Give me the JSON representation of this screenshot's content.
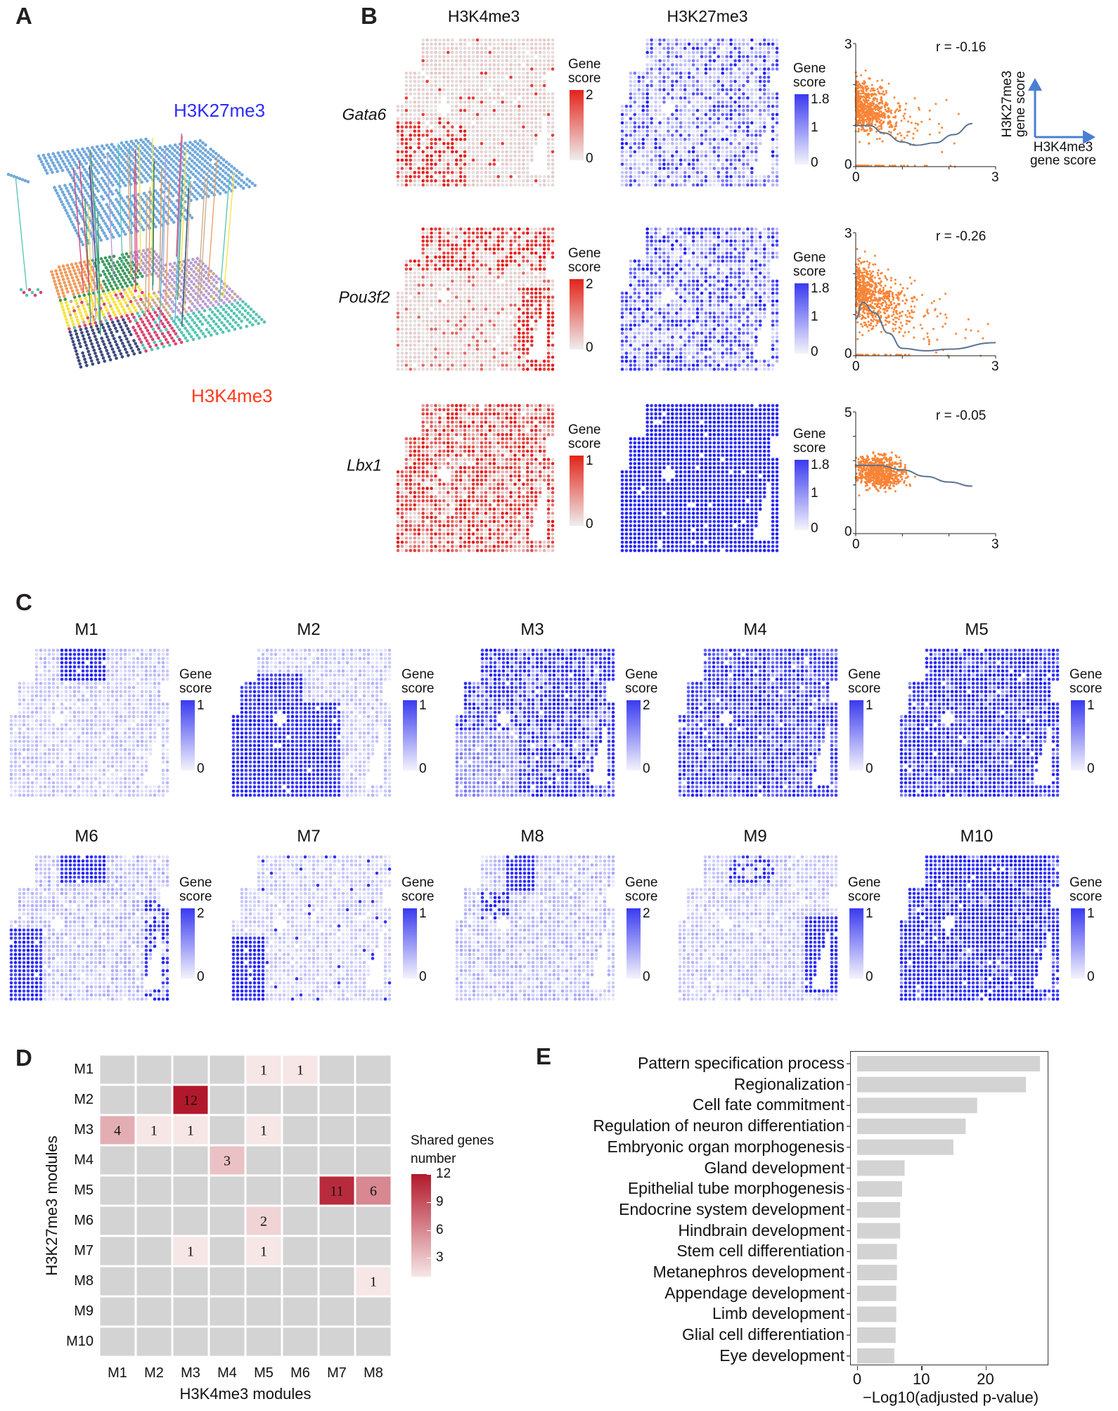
{
  "panels": {
    "a": "A",
    "b": "B",
    "c": "C",
    "d": "D",
    "e": "E"
  },
  "panel_a": {
    "top_layer_label": "H3K27me3",
    "bottom_layer_label": "H3K4me3",
    "colors": {
      "top": "#6fa8dc",
      "top_label": "#2b2bff",
      "bottom_label": "#ff3a1a"
    }
  },
  "panel_b": {
    "col_titles": [
      "H3K4me3",
      "H3K27me3"
    ],
    "legend_title_1": "Gene",
    "legend_title_2": "score",
    "rows": [
      {
        "gene": "Gata6",
        "k4_ticks": [
          "2",
          "0"
        ],
        "k27_ticks": [
          "1.8",
          "1",
          "0"
        ]
      },
      {
        "gene": "Pou3f2",
        "k4_ticks": [
          "2",
          "0"
        ],
        "k27_ticks": [
          "1.8",
          "1",
          "0"
        ]
      },
      {
        "gene": "Lbx1",
        "k4_ticks": [
          "1",
          "0"
        ],
        "k27_ticks": [
          "1.8",
          "1",
          "0"
        ]
      }
    ],
    "axis_key": {
      "y_line1": "H3K27me3",
      "y_line2": "gene score",
      "x_line1": "H3K4me3",
      "x_line2": "gene score",
      "color": "#4a7fd4"
    }
  },
  "panel_c": {
    "legend_title_1": "Gene",
    "legend_title_2": "score",
    "modules": [
      {
        "title": "M1",
        "ticks": [
          "1",
          "0"
        ]
      },
      {
        "title": "M2",
        "ticks": [
          "1",
          "0"
        ]
      },
      {
        "title": "M3",
        "ticks": [
          "2",
          "0"
        ]
      },
      {
        "title": "M4",
        "ticks": [
          "1",
          "0"
        ]
      },
      {
        "title": "M5",
        "ticks": [
          "1",
          "0"
        ]
      },
      {
        "title": "M6",
        "ticks": [
          "2",
          "0"
        ]
      },
      {
        "title": "M7",
        "ticks": [
          "1",
          "0"
        ]
      },
      {
        "title": "M8",
        "ticks": [
          "2",
          "0"
        ]
      },
      {
        "title": "M9",
        "ticks": [
          "1",
          "0"
        ]
      },
      {
        "title": "M10",
        "ticks": [
          "1",
          "0"
        ]
      }
    ]
  },
  "chart_data": [
    {
      "type": "scatter",
      "id": "gata6",
      "annotation": "r = -0.16",
      "xlim": [
        0,
        3
      ],
      "ylim": [
        0,
        3
      ],
      "xticks": [
        "0",
        "3"
      ],
      "yticks": [
        "0",
        "3"
      ],
      "point_color": "#f98436",
      "curve_color": "#5b7490",
      "smooth_curve": [
        [
          0,
          1.0
        ],
        [
          0.3,
          1.0
        ],
        [
          0.6,
          0.82
        ],
        [
          1.0,
          0.6
        ],
        [
          1.3,
          0.52
        ],
        [
          1.7,
          0.58
        ],
        [
          2.1,
          0.78
        ],
        [
          2.5,
          1.05
        ]
      ]
    },
    {
      "type": "scatter",
      "id": "pou3f2",
      "annotation": "r = -0.26",
      "xlim": [
        0,
        3
      ],
      "ylim": [
        0,
        3
      ],
      "xticks": [
        "0",
        "3"
      ],
      "yticks": [
        "0",
        "3"
      ],
      "point_color": "#f98436",
      "curve_color": "#5b7490",
      "smooth_curve": [
        [
          0,
          0.9
        ],
        [
          0.15,
          1.3
        ],
        [
          0.4,
          1.05
        ],
        [
          0.7,
          0.55
        ],
        [
          1.0,
          0.18
        ],
        [
          1.5,
          0.12
        ],
        [
          2.0,
          0.16
        ],
        [
          3.0,
          0.32
        ]
      ]
    },
    {
      "type": "scatter",
      "id": "lbx1",
      "annotation": "r = -0.05",
      "xlim": [
        0,
        3
      ],
      "ylim": [
        0,
        5
      ],
      "xticks": [
        "0",
        "3"
      ],
      "yticks": [
        "0",
        "5"
      ],
      "point_color": "#f98436",
      "curve_color": "#5b7490",
      "smooth_curve": [
        [
          0,
          2.8
        ],
        [
          0.5,
          2.8
        ],
        [
          1.0,
          2.62
        ],
        [
          1.5,
          2.35
        ],
        [
          2.0,
          2.12
        ],
        [
          2.5,
          1.95
        ]
      ]
    },
    {
      "type": "heatmap",
      "id": "shared-genes",
      "xlabel": "H3K4me3 modules",
      "ylabel": "H3K27me3 modules",
      "x_categories": [
        "M1",
        "M2",
        "M3",
        "M4",
        "M5",
        "M6",
        "M7",
        "M8"
      ],
      "y_categories": [
        "M1",
        "M2",
        "M3",
        "M4",
        "M5",
        "M6",
        "M7",
        "M8",
        "M9",
        "M10"
      ],
      "values": [
        [
          0,
          0,
          0,
          0,
          1,
          1,
          0,
          0
        ],
        [
          0,
          0,
          12,
          0,
          0,
          0,
          0,
          0
        ],
        [
          4,
          1,
          1,
          0,
          1,
          0,
          0,
          0
        ],
        [
          0,
          0,
          0,
          3,
          0,
          0,
          0,
          0
        ],
        [
          0,
          0,
          0,
          0,
          0,
          0,
          11,
          6
        ],
        [
          0,
          0,
          0,
          0,
          2,
          0,
          0,
          0
        ],
        [
          0,
          0,
          1,
          0,
          1,
          0,
          0,
          0
        ],
        [
          0,
          0,
          0,
          0,
          0,
          0,
          0,
          1
        ],
        [
          0,
          0,
          0,
          0,
          0,
          0,
          0,
          0
        ],
        [
          0,
          0,
          0,
          0,
          0,
          0,
          0,
          0
        ]
      ],
      "legend_title_1": "Shared genes",
      "legend_title_2": "number",
      "legend_ticks": [
        "12",
        "9",
        "6",
        "3"
      ],
      "legend_range": [
        1,
        12
      ],
      "colors": {
        "empty": "#d3d3d3",
        "low": "#f6e6e6",
        "high": "#b2182b"
      }
    },
    {
      "type": "bar",
      "id": "go-enrichment",
      "orientation": "horizontal",
      "categories": [
        "Pattern specification process",
        "Regionalization",
        "Cell fate commitment",
        "Regulation of neuron differentiation",
        "Embryonic organ morphogenesis",
        "Gland development",
        "Epithelial tube morphogenesis",
        "Endocrine system development",
        "Hindbrain development",
        "Stem cell differentiation",
        "Metanephros development",
        "Appendage development",
        "Limb development",
        "Glial cell differentiation",
        "Eye development"
      ],
      "values": [
        28.5,
        26.3,
        18.7,
        16.9,
        15.0,
        7.4,
        7.0,
        6.7,
        6.7,
        6.2,
        6.2,
        6.1,
        6.1,
        6.0,
        5.8
      ],
      "xlabel": "−Log10(adjusted p-value)",
      "xticks": [
        "0",
        "10",
        "20"
      ],
      "xlim": [
        0,
        29.8
      ],
      "bar_color": "#d3d3d3"
    }
  ]
}
